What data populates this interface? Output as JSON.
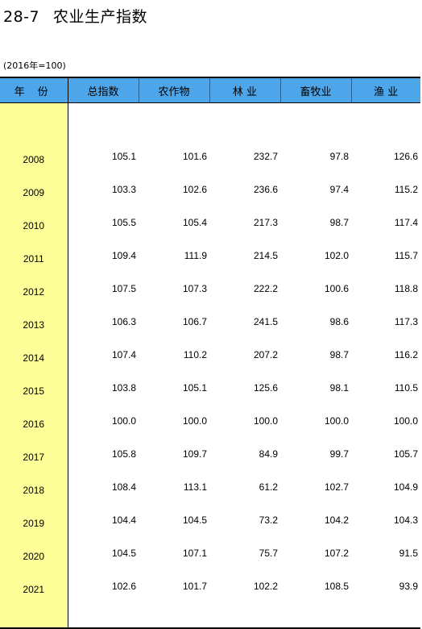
{
  "title": {
    "code": "28-7",
    "name": "农业生产指数"
  },
  "unit_note": "(2016年=100)",
  "header": {
    "year": "年 份",
    "total": "总指数",
    "crops": "农作物",
    "forestry": "林 业",
    "animal": "畜牧业",
    "fishery": "渔 业"
  },
  "rows": [
    {
      "year": "2008",
      "total": "105.1",
      "crops": "101.6",
      "forestry": "232.7",
      "animal": "97.8",
      "fishery": "126.6"
    },
    {
      "year": "2009",
      "total": "103.3",
      "crops": "102.6",
      "forestry": "236.6",
      "animal": "97.4",
      "fishery": "115.2"
    },
    {
      "year": "2010",
      "total": "105.5",
      "crops": "105.4",
      "forestry": "217.3",
      "animal": "98.7",
      "fishery": "117.4"
    },
    {
      "year": "2011",
      "total": "109.4",
      "crops": "111.9",
      "forestry": "214.5",
      "animal": "102.0",
      "fishery": "115.7"
    },
    {
      "year": "2012",
      "total": "107.5",
      "crops": "107.3",
      "forestry": "222.2",
      "animal": "100.6",
      "fishery": "118.8"
    },
    {
      "year": "2013",
      "total": "106.3",
      "crops": "106.7",
      "forestry": "241.5",
      "animal": "98.6",
      "fishery": "117.3"
    },
    {
      "year": "2014",
      "total": "107.4",
      "crops": "110.2",
      "forestry": "207.2",
      "animal": "98.7",
      "fishery": "116.2"
    },
    {
      "year": "2015",
      "total": "103.8",
      "crops": "105.1",
      "forestry": "125.6",
      "animal": "98.1",
      "fishery": "110.5"
    },
    {
      "year": "2016",
      "total": "100.0",
      "crops": "100.0",
      "forestry": "100.0",
      "animal": "100.0",
      "fishery": "100.0"
    },
    {
      "year": "2017",
      "total": "105.8",
      "crops": "109.7",
      "forestry": "84.9",
      "animal": "99.7",
      "fishery": "105.7"
    },
    {
      "year": "2018",
      "total": "108.4",
      "crops": "113.1",
      "forestry": "61.2",
      "animal": "102.7",
      "fishery": "104.9"
    },
    {
      "year": "2019",
      "total": "104.4",
      "crops": "104.5",
      "forestry": "73.2",
      "animal": "104.2",
      "fishery": "104.3"
    },
    {
      "year": "2020",
      "total": "104.5",
      "crops": "107.1",
      "forestry": "75.7",
      "animal": "107.2",
      "fishery": "91.5"
    },
    {
      "year": "2021",
      "total": "102.6",
      "crops": "101.7",
      "forestry": "102.2",
      "animal": "108.5",
      "fishery": "93.9"
    }
  ]
}
